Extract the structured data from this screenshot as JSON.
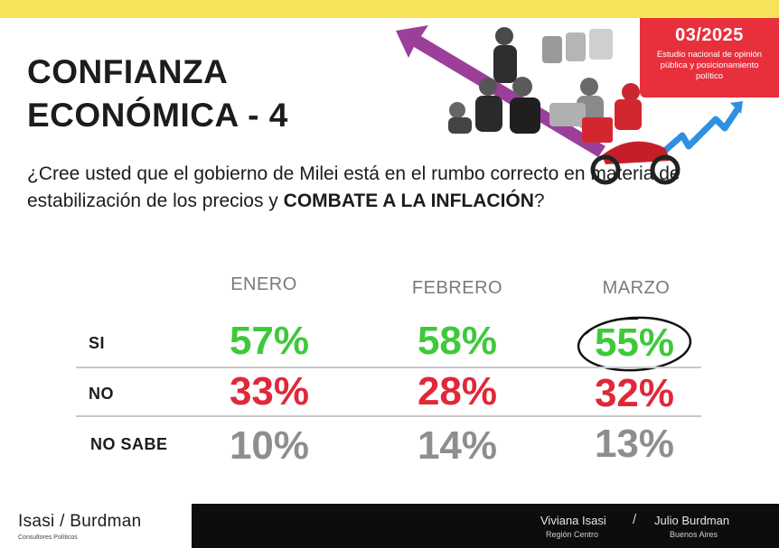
{
  "header": {
    "date": "03/2025",
    "badge_text": "Estudio nacional de opinión pública y posicionamiento político",
    "title_line1": "CONFIANZA",
    "title_line2": "ECONÓMICA - 4"
  },
  "question": {
    "text": "¿Cree usted que el gobierno de Milei está en el rumbo correcto en materia de estabilización de los precios y ",
    "emphasis": "COMBATE A LA INFLACIÓN",
    "end": "?"
  },
  "table": {
    "columns": [
      "ENERO",
      "FEBRERO",
      "MARZO"
    ],
    "rows": [
      {
        "label": "SI",
        "values": [
          "57%",
          "58%",
          "55%"
        ]
      },
      {
        "label": "NO",
        "values": [
          "33%",
          "28%",
          "32%"
        ]
      },
      {
        "label": "NO SABE",
        "values": [
          "10%",
          "14%",
          "13%"
        ]
      }
    ]
  },
  "colors": {
    "si": "#3ec93a",
    "no": "#e02838",
    "no_sabe": "#8e8e8e",
    "accent": "#e8303d",
    "top_bar": "#f6e35a"
  },
  "footer": {
    "brand": "Isasi / Burdman",
    "brand_sub": "Consultores Políticos",
    "person1": "Viviana Isasi",
    "region1": "Región Centro",
    "separator": "/",
    "person2": "Julio Burdman",
    "region2": "Buenos Aires"
  }
}
